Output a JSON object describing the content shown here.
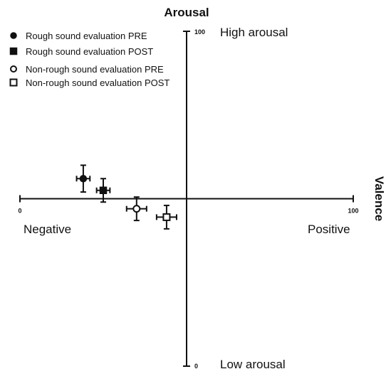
{
  "chart_data": {
    "type": "scatter",
    "title": "",
    "ylabel": "Arousal",
    "xlabel": "Valence",
    "xlim": [
      0,
      100
    ],
    "ylim": [
      0,
      100
    ],
    "x_tick_labels": [
      "0",
      "100"
    ],
    "y_tick_labels": [
      "0",
      "100"
    ],
    "region_labels": {
      "top": "High arousal",
      "bottom": "Low arousal",
      "left": "Negative",
      "right": "Positive"
    },
    "legend_position": "top-left",
    "grid": false,
    "series": [
      {
        "name": "Rough sound evaluation PRE",
        "marker": "filled-circle",
        "x": 19,
        "y": 56,
        "x_error": 2,
        "y_error": 4
      },
      {
        "name": "Rough sound evaluation POST",
        "marker": "filled-square",
        "x": 25,
        "y": 52.5,
        "x_error": 2,
        "y_error": 3.5
      },
      {
        "name": "Non-rough sound evaluation PRE",
        "marker": "open-circle",
        "x": 35,
        "y": 47,
        "x_error": 3,
        "y_error": 3.5
      },
      {
        "name": "Non-rough sound evaluation POST",
        "marker": "open-square",
        "x": 44,
        "y": 44.5,
        "x_error": 3,
        "y_error": 3.5
      }
    ]
  }
}
